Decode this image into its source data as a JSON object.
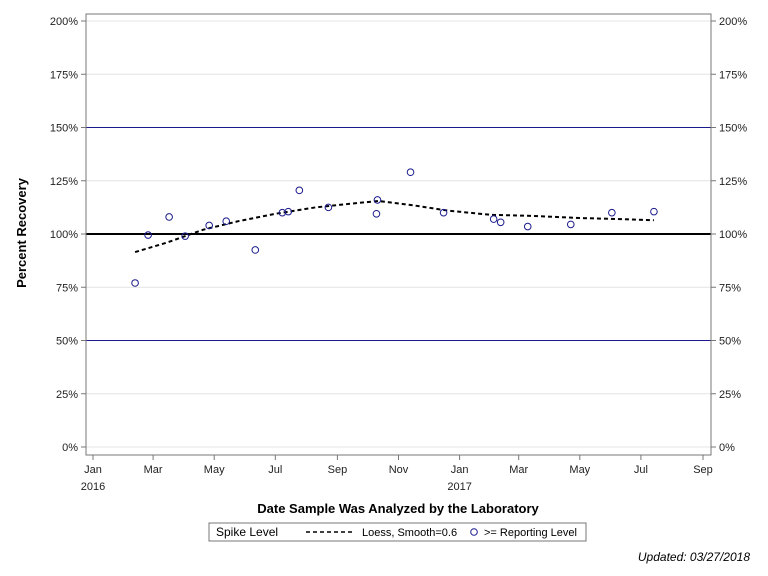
{
  "chart_data": {
    "type": "scatter",
    "xlabel": "Date Sample Was Analyzed by the Laboratory",
    "ylabel": "Percent Recovery",
    "xlim": [
      "2016-01-01",
      "2017-09-01"
    ],
    "ylim": [
      0,
      200
    ],
    "x_ticks": [
      {
        "date": "2016-01-01",
        "label": "Jan",
        "year": "2016"
      },
      {
        "date": "2016-03-01",
        "label": "Mar",
        "year": ""
      },
      {
        "date": "2016-05-01",
        "label": "May",
        "year": ""
      },
      {
        "date": "2016-07-01",
        "label": "Jul",
        "year": ""
      },
      {
        "date": "2016-09-01",
        "label": "Sep",
        "year": ""
      },
      {
        "date": "2016-11-01",
        "label": "Nov",
        "year": ""
      },
      {
        "date": "2017-01-01",
        "label": "Jan",
        "year": "2017"
      },
      {
        "date": "2017-03-01",
        "label": "Mar",
        "year": ""
      },
      {
        "date": "2017-05-01",
        "label": "May",
        "year": ""
      },
      {
        "date": "2017-07-01",
        "label": "Jul",
        "year": ""
      },
      {
        "date": "2017-09-01",
        "label": "Sep",
        "year": ""
      }
    ],
    "y_ticks": [
      {
        "value": 0,
        "label": "0%"
      },
      {
        "value": 25,
        "label": "25%"
      },
      {
        "value": 50,
        "label": "50%"
      },
      {
        "value": 75,
        "label": "75%"
      },
      {
        "value": 100,
        "label": "100%"
      },
      {
        "value": 125,
        "label": "125%"
      },
      {
        "value": 150,
        "label": "150%"
      },
      {
        "value": 175,
        "label": "175%"
      },
      {
        "value": 200,
        "label": "200%"
      }
    ],
    "reference_lines": [
      {
        "value": 150,
        "color": "#1a1a8c"
      },
      {
        "value": 100,
        "color": "#000000"
      },
      {
        "value": 50,
        "color": "#1a1a8c"
      }
    ],
    "series": [
      {
        "name": ">= Reporting Level",
        "kind": "scatter",
        "color": "#1a1a8c",
        "points": [
          {
            "date": "2016-02-12",
            "y": 77
          },
          {
            "date": "2016-02-25",
            "y": 99.5
          },
          {
            "date": "2016-03-17",
            "y": 108
          },
          {
            "date": "2016-04-02",
            "y": 99
          },
          {
            "date": "2016-04-26",
            "y": 104
          },
          {
            "date": "2016-05-13",
            "y": 106
          },
          {
            "date": "2016-06-11",
            "y": 92.5
          },
          {
            "date": "2016-07-08",
            "y": 110
          },
          {
            "date": "2016-07-14",
            "y": 110.5
          },
          {
            "date": "2016-07-25",
            "y": 120.5
          },
          {
            "date": "2016-08-23",
            "y": 112.5
          },
          {
            "date": "2016-10-10",
            "y": 109.5
          },
          {
            "date": "2016-10-11",
            "y": 116
          },
          {
            "date": "2016-11-13",
            "y": 129
          },
          {
            "date": "2016-12-16",
            "y": 110
          },
          {
            "date": "2017-02-04",
            "y": 107
          },
          {
            "date": "2017-02-11",
            "y": 105.5
          },
          {
            "date": "2017-03-10",
            "y": 103.5
          },
          {
            "date": "2017-04-22",
            "y": 104.5
          },
          {
            "date": "2017-06-02",
            "y": 110
          },
          {
            "date": "2017-07-14",
            "y": 110.5
          }
        ]
      },
      {
        "name": "Loess, Smooth=0.6",
        "kind": "line",
        "color": "#000000",
        "points": [
          {
            "date": "2016-02-12",
            "y": 91.5
          },
          {
            "date": "2016-03-15",
            "y": 96
          },
          {
            "date": "2016-04-20",
            "y": 102
          },
          {
            "date": "2016-05-25",
            "y": 106
          },
          {
            "date": "2016-07-01",
            "y": 109.5
          },
          {
            "date": "2016-08-10",
            "y": 112.5
          },
          {
            "date": "2016-09-20",
            "y": 114.5
          },
          {
            "date": "2016-10-12",
            "y": 115.5
          },
          {
            "date": "2016-11-15",
            "y": 113.5
          },
          {
            "date": "2016-12-20",
            "y": 111
          },
          {
            "date": "2017-02-01",
            "y": 109
          },
          {
            "date": "2017-03-15",
            "y": 108.5
          },
          {
            "date": "2017-05-01",
            "y": 107.5
          },
          {
            "date": "2017-06-10",
            "y": 107
          },
          {
            "date": "2017-07-14",
            "y": 106.5
          }
        ]
      }
    ],
    "legend": {
      "title": "Spike Level",
      "placement": "bottom"
    }
  },
  "footer": {
    "updated": "Updated: 03/27/2018"
  }
}
